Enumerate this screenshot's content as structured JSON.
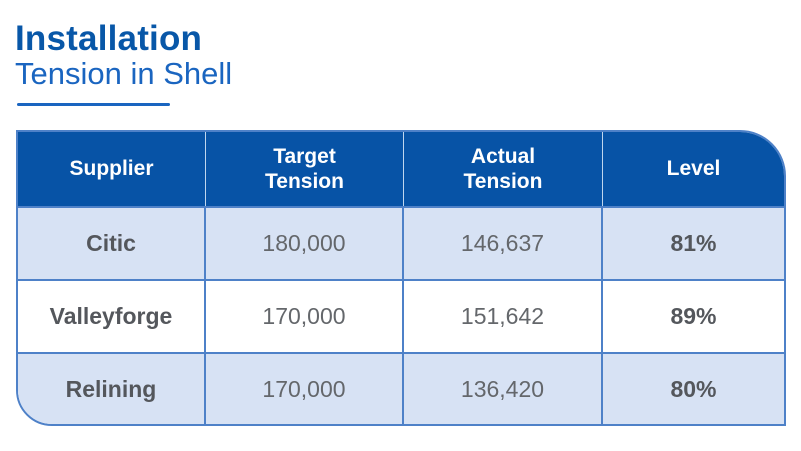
{
  "title": {
    "line1": "Installation",
    "line2": "Tension in Shell"
  },
  "table": {
    "headers": [
      {
        "label": "Supplier"
      },
      {
        "label": "Target Tension"
      },
      {
        "label": "Actual Tension"
      },
      {
        "label": "Level"
      }
    ],
    "rows": [
      {
        "cells": [
          "Citic",
          "180,000",
          "146,637",
          "81%"
        ]
      },
      {
        "cells": [
          "Valleyforge",
          "170,000",
          "151,642",
          "89%"
        ]
      },
      {
        "cells": [
          "Relining",
          "170,000",
          "136,420",
          "80%"
        ]
      }
    ]
  },
  "chart_data": {
    "type": "table",
    "title": "Installation — Tension in Shell",
    "columns": [
      "Supplier",
      "Target Tension",
      "Actual Tension",
      "Level"
    ],
    "rows": [
      [
        "Citic",
        180000,
        146637,
        "81%"
      ],
      [
        "Valleyforge",
        170000,
        151642,
        "89%"
      ],
      [
        "Relining",
        170000,
        136420,
        "80%"
      ]
    ]
  },
  "colors": {
    "title_primary": "#0857A8",
    "title_secondary": "#1A65C0",
    "header_bg": "#0753A6",
    "header_text": "#FFFFFF",
    "row_alt_bg": "#D7E2F4",
    "row_bg": "#FFFFFF",
    "grid_line": "#4E81C8",
    "header_divider": "#BFD6EE",
    "cell_text": "#64676B",
    "cell_text_strong": "#54575C"
  }
}
